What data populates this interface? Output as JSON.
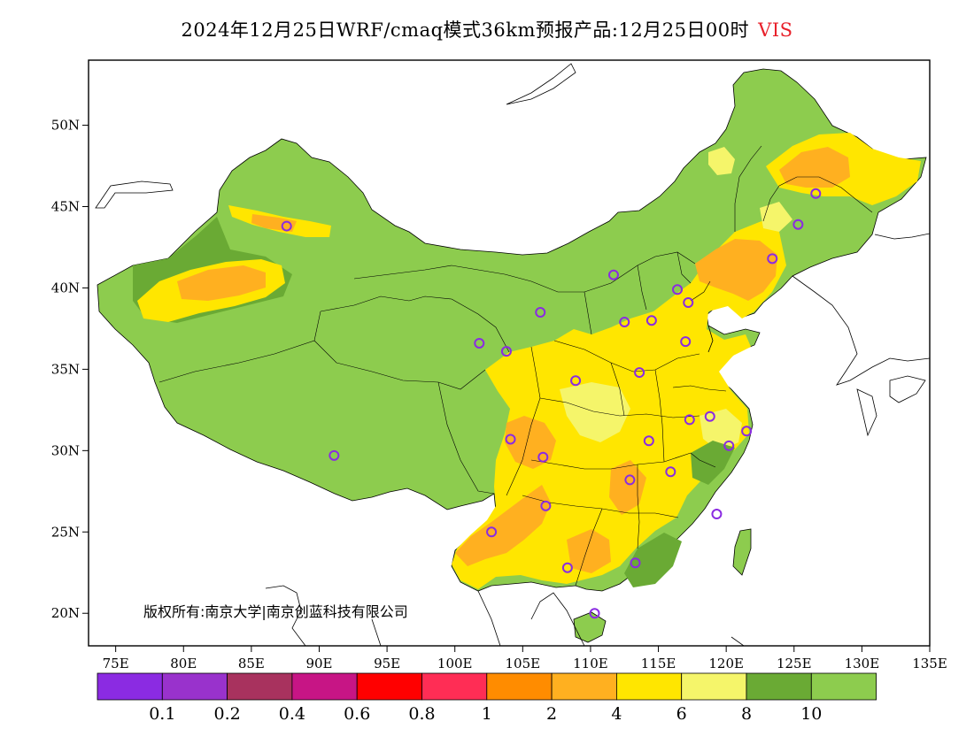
{
  "title": {
    "main": "2024年12月25日WRF/cmaq模式36km预报产品:12月25日00时",
    "variable": "VIS"
  },
  "copyright": "版权所有:南京大学|南京创蓝科技有限公司",
  "axes": {
    "lon_min": 73,
    "lon_max": 135,
    "lat_min": 18,
    "lat_max": 54,
    "lon_ticks": [
      "75E",
      "80E",
      "85E",
      "90E",
      "95E",
      "100E",
      "105E",
      "110E",
      "115E",
      "120E",
      "125E",
      "130E",
      "135E"
    ],
    "lon_tick_values": [
      75,
      80,
      85,
      90,
      95,
      100,
      105,
      110,
      115,
      120,
      125,
      130,
      135
    ],
    "lat_ticks": [
      "20N",
      "25N",
      "30N",
      "35N",
      "40N",
      "45N",
      "50N"
    ],
    "lat_tick_values": [
      20,
      25,
      30,
      35,
      40,
      45,
      50
    ]
  },
  "colorbar": {
    "colors": [
      "#8b2be2",
      "#9932cc",
      "#a8325e",
      "#c71585",
      "#ff0000",
      "#ff2d55",
      "#ff8c00",
      "#ffb020",
      "#ffe600",
      "#f5f56a",
      "#6aaa34",
      "#8dcc4e"
    ],
    "labels": [
      "0.1",
      "0.2",
      "0.4",
      "0.6",
      "0.8",
      "1",
      "2",
      "4",
      "6",
      "8",
      "10"
    ]
  },
  "stations": [
    [
      87.6,
      43.8
    ],
    [
      91.1,
      29.7
    ],
    [
      101.8,
      36.6
    ],
    [
      103.8,
      36.1
    ],
    [
      106.3,
      38.5
    ],
    [
      111.7,
      40.8
    ],
    [
      112.5,
      37.9
    ],
    [
      114.5,
      38.0
    ],
    [
      116.4,
      39.9
    ],
    [
      117.2,
      39.1
    ],
    [
      123.4,
      41.8
    ],
    [
      125.3,
      43.9
    ],
    [
      126.6,
      45.8
    ],
    [
      117.0,
      36.7
    ],
    [
      113.6,
      34.8
    ],
    [
      108.9,
      34.3
    ],
    [
      104.1,
      30.7
    ],
    [
      106.5,
      29.6
    ],
    [
      106.7,
      26.6
    ],
    [
      102.7,
      25.0
    ],
    [
      108.3,
      22.8
    ],
    [
      110.3,
      20.0
    ],
    [
      113.3,
      23.1
    ],
    [
      119.3,
      26.1
    ],
    [
      115.9,
      28.7
    ],
    [
      112.9,
      28.2
    ],
    [
      114.3,
      30.6
    ],
    [
      117.3,
      31.9
    ],
    [
      118.8,
      32.1
    ],
    [
      120.2,
      30.3
    ],
    [
      121.5,
      31.2
    ]
  ]
}
